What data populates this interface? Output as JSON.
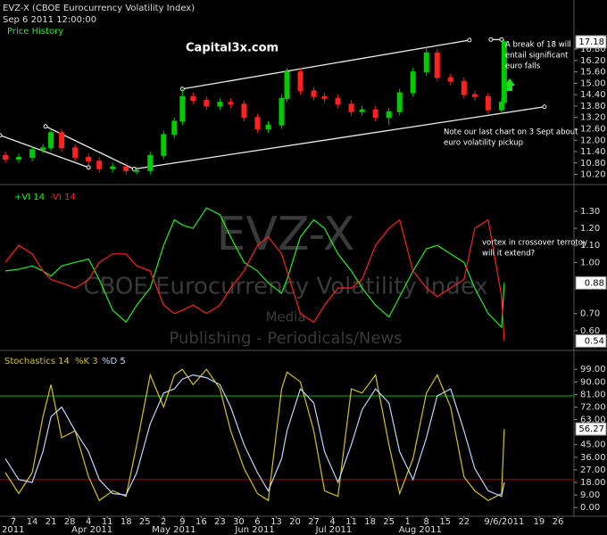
{
  "chart_data": [
    {
      "type": "candlestick",
      "title": "EVZ-X (CBOE Eurocurrency Volatility Index)",
      "subtitle": "Sep 6 2011 12:00:00",
      "name": "Price History",
      "brand": "Capital3x.com",
      "x": [
        -3,
        2,
        7,
        11,
        14,
        18,
        23,
        28,
        32,
        37,
        42,
        46,
        51,
        56,
        60,
        63,
        67,
        72,
        77,
        81,
        86,
        91,
        95,
        100,
        102,
        107,
        112,
        116,
        121,
        126,
        130,
        135,
        140,
        144,
        149,
        154,
        158,
        163,
        168,
        172,
        177,
        182,
        183
      ],
      "open": [
        11.2,
        11.0,
        11.1,
        11.5,
        11.6,
        12.4,
        11.6,
        11.1,
        10.9,
        10.5,
        10.6,
        10.4,
        10.4,
        11.2,
        12.3,
        13.0,
        14.3,
        14.1,
        13.8,
        14.0,
        13.9,
        13.2,
        12.6,
        12.8,
        14.2,
        15.6,
        14.6,
        14.3,
        14.2,
        13.9,
        13.5,
        13.6,
        13.2,
        13.5,
        14.5,
        15.6,
        16.6,
        15.3,
        15.1,
        14.4,
        14.3,
        13.6,
        14.0
      ],
      "high": [
        11.4,
        11.3,
        11.7,
        11.8,
        12.6,
        12.6,
        11.8,
        11.3,
        11.1,
        10.8,
        10.8,
        10.6,
        11.4,
        12.5,
        13.2,
        14.7,
        14.5,
        14.3,
        14.2,
        14.2,
        14.1,
        13.4,
        13.0,
        14.4,
        15.8,
        15.8,
        14.8,
        14.5,
        14.4,
        14.1,
        13.8,
        13.8,
        13.7,
        14.7,
        15.8,
        16.9,
        16.8,
        15.5,
        15.3,
        14.6,
        14.5,
        14.2,
        17.3
      ],
      "low": [
        10.8,
        10.8,
        10.9,
        11.3,
        11.4,
        11.4,
        10.9,
        10.7,
        10.3,
        10.3,
        10.2,
        10.2,
        10.2,
        11.0,
        12.1,
        12.8,
        13.9,
        13.6,
        13.6,
        13.7,
        13.0,
        12.4,
        12.4,
        12.6,
        14.0,
        14.4,
        14.1,
        14.0,
        13.7,
        13.3,
        13.3,
        13.0,
        12.8,
        13.3,
        14.3,
        15.4,
        15.1,
        14.9,
        14.2,
        14.1,
        13.4,
        13.4,
        13.9
      ],
      "close": [
        11.0,
        11.1,
        11.5,
        11.6,
        12.4,
        11.6,
        11.1,
        10.9,
        10.5,
        10.6,
        10.4,
        10.4,
        11.2,
        12.3,
        13.0,
        14.3,
        14.1,
        13.8,
        14.0,
        13.9,
        13.2,
        12.6,
        12.8,
        14.2,
        15.6,
        14.6,
        14.3,
        14.2,
        13.9,
        13.5,
        13.6,
        13.2,
        13.5,
        14.5,
        15.6,
        16.6,
        15.3,
        15.1,
        14.4,
        14.3,
        13.6,
        14.0,
        17.18
      ],
      "up_color": "#00cc00",
      "down_color": "#ff2020",
      "xlim": [
        -5,
        209
      ],
      "ylim": [
        9.9,
        17.6
      ],
      "yticks": [
        {
          "value": 10.2,
          "label": "10.20"
        },
        {
          "value": 10.8,
          "label": "10.80"
        },
        {
          "value": 11.4,
          "label": "11.40"
        },
        {
          "value": 12,
          "label": "12.00"
        },
        {
          "value": 12.6,
          "label": "12.60"
        },
        {
          "value": 13.2,
          "label": "13.20"
        },
        {
          "value": 13.8,
          "label": "13.80"
        },
        {
          "value": 14.4,
          "label": "14.40"
        },
        {
          "value": 15,
          "label": "15.00"
        },
        {
          "value": 15.6,
          "label": "15.60"
        },
        {
          "value": 16.2,
          "label": "16.20"
        },
        {
          "value": 16.8,
          "label": "16.80"
        }
      ],
      "trendlines": [
        {
          "x": [
            -5,
            28
          ],
          "y": [
            12.26,
            10.57
          ]
        },
        {
          "x": [
            12,
            45
          ],
          "y": [
            12.73,
            10.48
          ]
        },
        {
          "x": [
            45,
            198
          ],
          "y": [
            10.48,
            13.76
          ]
        },
        {
          "x": [
            63,
            170
          ],
          "y": [
            14.7,
            17.27
          ]
        },
        {
          "x": [
            178,
            182
          ],
          "y": [
            17.3,
            17.3
          ]
        }
      ],
      "annotations": [
        [
          "A break of 18 will",
          "entail significant",
          "euro falls"
        ],
        [
          "Note our last chart on 3 Sept about",
          "euro volatility pickup"
        ]
      ]
    },
    {
      "type": "line",
      "x": [
        -3,
        2,
        7,
        11,
        14,
        18,
        23,
        28,
        32,
        37,
        42,
        46,
        51,
        56,
        60,
        63,
        67,
        72,
        77,
        81,
        86,
        91,
        95,
        100,
        102,
        107,
        112,
        116,
        121,
        126,
        130,
        135,
        140,
        144,
        149,
        154,
        158,
        163,
        168,
        172,
        177,
        182,
        183
      ],
      "series": [
        {
          "name": "+VI 14",
          "color": "#22ee22",
          "last_value_box": true,
          "values": [
            0.95,
            0.96,
            0.98,
            0.95,
            0.92,
            0.98,
            1.0,
            1.02,
            0.9,
            0.72,
            0.65,
            0.75,
            0.85,
            1.1,
            1.25,
            1.22,
            1.2,
            1.32,
            1.28,
            1.15,
            1.0,
            0.95,
            0.88,
            0.82,
            0.9,
            1.15,
            1.25,
            1.2,
            1.05,
            0.95,
            0.85,
            0.75,
            0.68,
            0.8,
            0.95,
            1.08,
            1.1,
            1.05,
            1.0,
            0.85,
            0.7,
            0.62,
            0.88
          ]
        },
        {
          "name": "-VI 14",
          "color": "#ff2020",
          "last_value_box": true,
          "values": [
            1.0,
            1.1,
            1.05,
            0.95,
            0.9,
            0.88,
            0.85,
            0.9,
            1.0,
            1.05,
            1.05,
            0.98,
            0.95,
            0.75,
            0.7,
            0.72,
            0.75,
            0.7,
            0.75,
            0.85,
            0.95,
            1.1,
            1.15,
            1.05,
            0.95,
            0.7,
            0.65,
            0.75,
            0.85,
            0.85,
            0.9,
            1.1,
            1.2,
            1.25,
            0.95,
            0.85,
            0.8,
            0.85,
            0.9,
            1.2,
            1.25,
            0.8,
            0.54
          ]
        }
      ],
      "xlim": [
        -5,
        209
      ],
      "ylim": [
        0.5,
        1.42
      ],
      "yticks": [
        {
          "value": 0.6,
          "label": "0.60"
        },
        {
          "value": 0.7,
          "label": "0.70"
        },
        {
          "value": 1,
          "label": "1.00"
        },
        {
          "value": 1.1,
          "label": "1.10"
        },
        {
          "value": 1.2,
          "label": "1.20"
        },
        {
          "value": 1.3,
          "label": "1.30"
        }
      ],
      "watermark": [
        "EVZ-X",
        "CBOE Eurocurrency Volatility Index",
        "Media",
        "Publishing - Periodicals/News"
      ],
      "annotations": [
        [
          "vortex in crossover terrotoy",
          "will it extend?"
        ]
      ]
    },
    {
      "type": "line",
      "title": "Stochastics 14",
      "x": [
        -3,
        2,
        7,
        11,
        14,
        18,
        23,
        28,
        32,
        37,
        42,
        46,
        51,
        56,
        60,
        63,
        67,
        72,
        77,
        81,
        86,
        91,
        95,
        100,
        102,
        107,
        112,
        116,
        121,
        126,
        130,
        135,
        140,
        144,
        149,
        154,
        158,
        163,
        168,
        172,
        177,
        182,
        183
      ],
      "series": [
        {
          "name": "%K 3",
          "color": "#d4c21a",
          "last_value_box": true,
          "values": [
            25,
            10,
            25,
            65,
            88,
            50,
            55,
            22,
            5,
            12,
            8,
            45,
            95,
            72,
            95,
            99,
            88,
            99,
            85,
            55,
            28,
            10,
            5,
            85,
            97,
            90,
            55,
            12,
            8,
            85,
            82,
            95,
            45,
            10,
            35,
            82,
            95,
            72,
            22,
            12,
            5,
            10,
            56.27
          ]
        },
        {
          "name": "%D 5",
          "color": "#b8d8ff",
          "last_value_box": false,
          "values": [
            35,
            20,
            18,
            40,
            65,
            72,
            55,
            40,
            20,
            10,
            9,
            25,
            60,
            82,
            85,
            92,
            95,
            93,
            88,
            72,
            45,
            25,
            12,
            35,
            55,
            85,
            75,
            40,
            18,
            45,
            70,
            85,
            75,
            40,
            20,
            50,
            80,
            85,
            55,
            28,
            12,
            8,
            18
          ]
        }
      ],
      "levels": [
        {
          "value": 80,
          "color": "#00bb00"
        },
        {
          "value": 20,
          "color": "#bb0000"
        }
      ],
      "xlim": [
        -5,
        209
      ],
      "ylim": [
        -5,
        110
      ],
      "yticks": [
        {
          "value": 0,
          "label": "0.00"
        },
        {
          "value": 9,
          "label": "9.00"
        },
        {
          "value": 18,
          "label": "18.00"
        },
        {
          "value": 27,
          "label": "27.00"
        },
        {
          "value": 36,
          "label": "36.00"
        },
        {
          "value": 45,
          "label": "45.00"
        },
        {
          "value": 63,
          "label": "63.00"
        },
        {
          "value": 72,
          "label": "72.00"
        },
        {
          "value": 81,
          "label": "81.00"
        },
        {
          "value": 90,
          "label": "90.00"
        },
        {
          "value": 99,
          "label": "99.00"
        }
      ],
      "xticks": [
        {
          "value": 0,
          "label": "7"
        },
        {
          "value": 7,
          "label": "14"
        },
        {
          "value": 14,
          "label": "21"
        },
        {
          "value": 21,
          "label": "28"
        },
        {
          "value": 28,
          "label": "4"
        },
        {
          "value": 35,
          "label": "11"
        },
        {
          "value": 42,
          "label": "18"
        },
        {
          "value": 49,
          "label": "25"
        },
        {
          "value": 56,
          "label": "2"
        },
        {
          "value": 63,
          "label": "9"
        },
        {
          "value": 70,
          "label": "16"
        },
        {
          "value": 77,
          "label": "23"
        },
        {
          "value": 84,
          "label": "30"
        },
        {
          "value": 91,
          "label": "6"
        },
        {
          "value": 98,
          "label": "13"
        },
        {
          "value": 105,
          "label": "20"
        },
        {
          "value": 112,
          "label": "27"
        },
        {
          "value": 119,
          "label": "4"
        },
        {
          "value": 126,
          "label": "11"
        },
        {
          "value": 133,
          "label": "18"
        },
        {
          "value": 140,
          "label": "25"
        },
        {
          "value": 147,
          "label": "1"
        },
        {
          "value": 154,
          "label": "8"
        },
        {
          "value": 161,
          "label": "15"
        },
        {
          "value": 168,
          "label": "22"
        },
        {
          "value": 183,
          "label": "9/6/2011"
        },
        {
          "value": 196,
          "label": "19"
        },
        {
          "value": 203,
          "label": "26"
        }
      ],
      "month_labels": [
        {
          "value": -6,
          "label": "2011"
        },
        {
          "value": 25,
          "label": "Apr 2011"
        },
        {
          "value": 55,
          "label": "May 2011"
        },
        {
          "value": 86,
          "label": "Jun 2011"
        },
        {
          "value": 116,
          "label": "Jul 2011"
        },
        {
          "value": 147,
          "label": "Aug 2011"
        }
      ]
    }
  ]
}
